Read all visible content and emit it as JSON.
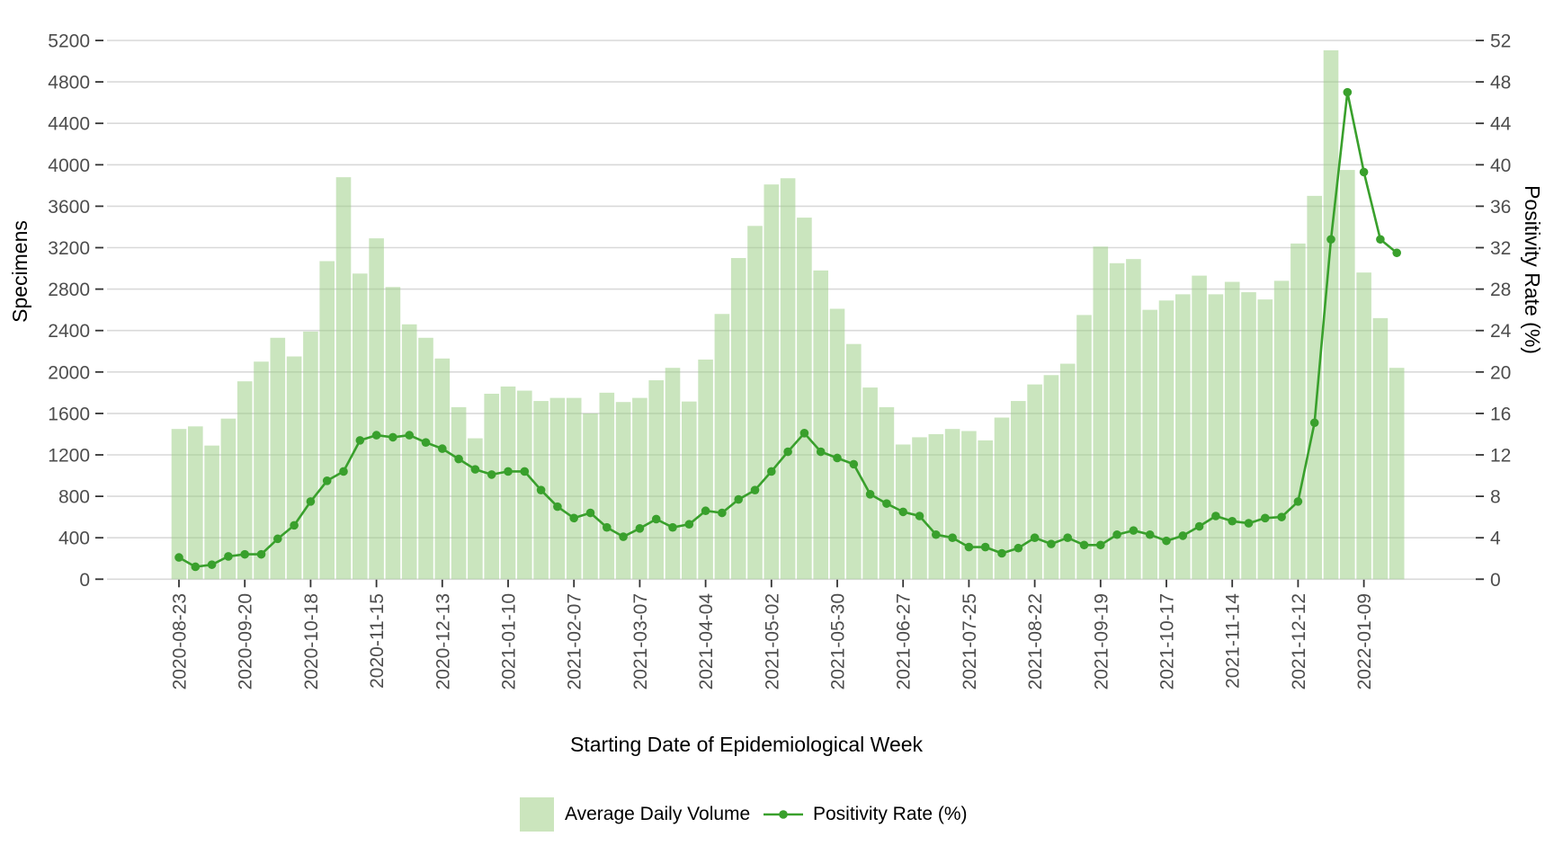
{
  "colors": {
    "bar_fill": "rgba(154,205,131,0.52)",
    "bar_fill_solid": "#cbe5bd",
    "line": "#39a02c",
    "gridline": "#d9d9d9",
    "tick_mark": "#333333",
    "tick_label": "#4d4d4d",
    "axis_title": "#000000",
    "background": "#ffffff"
  },
  "legend": {
    "volume_label": "Average Daily Volume",
    "positivity_label": "Positivity Rate (%)"
  },
  "chart_data": {
    "type": "bar",
    "subtype": "dual-axis bar + line",
    "title": "",
    "xlabel": "Starting Date of Epidemiological Week",
    "ylabel_left": "Specimens",
    "ylabel_right": "Positivity Rate (%)",
    "ylim_left": [
      0,
      5200
    ],
    "ylim_right": [
      0,
      52
    ],
    "yticks_left": [
      0,
      400,
      800,
      1200,
      1600,
      2000,
      2400,
      2800,
      3200,
      3600,
      4000,
      4400,
      4800,
      5200
    ],
    "yticks_right": [
      0,
      4,
      8,
      12,
      16,
      20,
      24,
      28,
      32,
      36,
      40,
      44,
      48,
      52
    ],
    "x_tick_every": 4,
    "grid": "horizontal major gridlines on, white vertical gaps between bars",
    "legend_position": "bottom",
    "categories": [
      "2020-08-23",
      "2020-08-30",
      "2020-09-06",
      "2020-09-13",
      "2020-09-20",
      "2020-09-27",
      "2020-10-04",
      "2020-10-11",
      "2020-10-18",
      "2020-10-25",
      "2020-11-01",
      "2020-11-08",
      "2020-11-15",
      "2020-11-22",
      "2020-11-29",
      "2020-12-06",
      "2020-12-13",
      "2020-12-20",
      "2020-12-27",
      "2021-01-03",
      "2021-01-10",
      "2021-01-17",
      "2021-01-24",
      "2021-01-31",
      "2021-02-07",
      "2021-02-14",
      "2021-02-21",
      "2021-02-28",
      "2021-03-07",
      "2021-03-14",
      "2021-03-21",
      "2021-03-28",
      "2021-04-04",
      "2021-04-11",
      "2021-04-18",
      "2021-04-25",
      "2021-05-02",
      "2021-05-09",
      "2021-05-16",
      "2021-05-23",
      "2021-05-30",
      "2021-06-06",
      "2021-06-13",
      "2021-06-20",
      "2021-06-27",
      "2021-07-04",
      "2021-07-11",
      "2021-07-18",
      "2021-07-25",
      "2021-08-01",
      "2021-08-08",
      "2021-08-15",
      "2021-08-22",
      "2021-08-29",
      "2021-09-05",
      "2021-09-12",
      "2021-09-19",
      "2021-09-26",
      "2021-10-03",
      "2021-10-10",
      "2021-10-17",
      "2021-10-24",
      "2021-10-31",
      "2021-11-07",
      "2021-11-14",
      "2021-11-21",
      "2021-11-28",
      "2021-12-05",
      "2021-12-12",
      "2021-12-19",
      "2021-12-26",
      "2022-01-02",
      "2022-01-09",
      "2022-01-16",
      "2022-01-23"
    ],
    "series": [
      {
        "name": "Average Daily Volume",
        "type": "bar",
        "axis": "left",
        "values": [
          1450,
          1475,
          1290,
          1550,
          1910,
          2100,
          2330,
          2150,
          2390,
          3070,
          3880,
          2950,
          3290,
          2820,
          2460,
          2330,
          2130,
          1660,
          1360,
          1790,
          1860,
          1820,
          1720,
          1750,
          1750,
          1600,
          1800,
          1710,
          1750,
          1920,
          2040,
          1715,
          2120,
          2560,
          3100,
          3410,
          3810,
          3870,
          3490,
          2980,
          2610,
          2270,
          1850,
          1660,
          1300,
          1370,
          1400,
          1450,
          1430,
          1340,
          1560,
          1720,
          1880,
          1970,
          2080,
          2550,
          3210,
          3050,
          3090,
          2600,
          2690,
          2750,
          2930,
          2750,
          2870,
          2770,
          2700,
          2880,
          3240,
          3700,
          5105,
          3950,
          2960,
          2520,
          2040
        ]
      },
      {
        "name": "Positivity Rate (%)",
        "type": "line",
        "axis": "right",
        "values": [
          2.1,
          1.2,
          1.4,
          2.2,
          2.4,
          2.4,
          3.9,
          5.2,
          7.5,
          9.5,
          10.4,
          13.4,
          13.9,
          13.7,
          13.9,
          13.2,
          12.6,
          11.6,
          10.6,
          10.1,
          10.4,
          10.4,
          8.6,
          7.0,
          5.9,
          6.4,
          5.0,
          4.1,
          4.9,
          5.8,
          5.0,
          5.3,
          6.6,
          6.4,
          7.7,
          8.6,
          10.4,
          12.3,
          14.1,
          12.3,
          11.7,
          11.1,
          8.2,
          7.3,
          6.5,
          6.1,
          4.3,
          4.0,
          3.1,
          3.1,
          2.5,
          3.0,
          4.0,
          3.4,
          4.0,
          3.3,
          3.3,
          4.3,
          4.7,
          4.3,
          3.7,
          4.2,
          5.1,
          6.1,
          5.6,
          5.4,
          5.9,
          6.0,
          7.5,
          15.1,
          32.8,
          47.0,
          39.3,
          32.8,
          31.5
        ]
      }
    ]
  }
}
